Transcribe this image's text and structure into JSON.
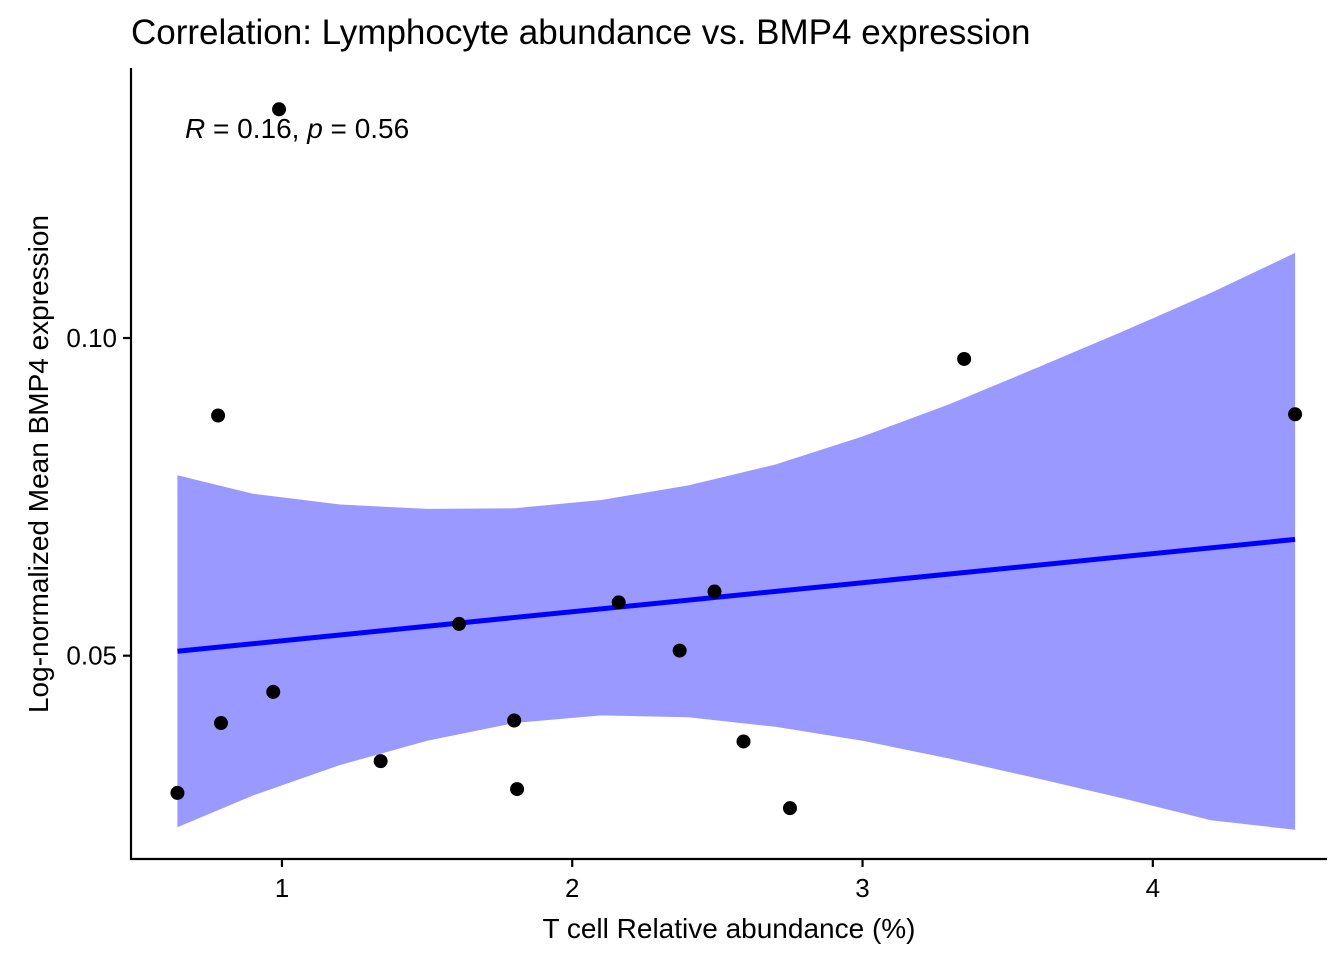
{
  "chart_data": {
    "type": "scatter",
    "title": "Correlation: Lymphocyte abundance vs. BMP4 expression",
    "xlabel": "T cell Relative abundance (%)",
    "ylabel": "Log-normalized Mean BMP4 expression",
    "annotation": {
      "r_symbol": "R",
      "r_text": " = 0.16, ",
      "p_symbol": "p",
      "p_text": " = 0.56"
    },
    "xlim": [
      0.48,
      4.6
    ],
    "ylim": [
      0.018,
      0.1425
    ],
    "x_ticks": [
      1,
      2,
      3,
      4
    ],
    "x_tick_labels": [
      "1",
      "2",
      "3",
      "4"
    ],
    "y_ticks": [
      0.05,
      0.1
    ],
    "y_tick_labels": [
      "0.05",
      "0.10"
    ],
    "grid": false,
    "colors": {
      "points": "#000000",
      "fit_line": "#0000ff",
      "ribbon": "#9999ff",
      "axis": "#000000"
    },
    "points": [
      {
        "x": 0.64,
        "y": 0.0284
      },
      {
        "x": 0.78,
        "y": 0.0878
      },
      {
        "x": 0.79,
        "y": 0.0394
      },
      {
        "x": 0.97,
        "y": 0.0443
      },
      {
        "x": 0.99,
        "y": 0.136
      },
      {
        "x": 1.34,
        "y": 0.0334
      },
      {
        "x": 1.61,
        "y": 0.055
      },
      {
        "x": 1.8,
        "y": 0.0398
      },
      {
        "x": 1.81,
        "y": 0.029
      },
      {
        "x": 2.16,
        "y": 0.0584
      },
      {
        "x": 2.37,
        "y": 0.0508
      },
      {
        "x": 2.49,
        "y": 0.0601
      },
      {
        "x": 2.59,
        "y": 0.0365
      },
      {
        "x": 2.75,
        "y": 0.026
      },
      {
        "x": 3.35,
        "y": 0.0967
      },
      {
        "x": 4.49,
        "y": 0.088
      }
    ],
    "fit": {
      "x": [
        0.64,
        4.49
      ],
      "y": [
        0.0507,
        0.0683
      ]
    },
    "ribbon": {
      "x": [
        0.64,
        0.9,
        1.2,
        1.5,
        1.8,
        2.1,
        2.4,
        2.7,
        3.0,
        3.3,
        3.6,
        3.9,
        4.2,
        4.49
      ],
      "upper": [
        0.0784,
        0.0755,
        0.0738,
        0.0731,
        0.0732,
        0.0745,
        0.0768,
        0.0801,
        0.0845,
        0.0896,
        0.0953,
        0.1011,
        0.1071,
        0.1134
      ],
      "lower": [
        0.023,
        0.028,
        0.0328,
        0.0366,
        0.0394,
        0.0406,
        0.0403,
        0.0388,
        0.0366,
        0.0338,
        0.0307,
        0.0275,
        0.0241,
        0.0226
      ]
    }
  }
}
